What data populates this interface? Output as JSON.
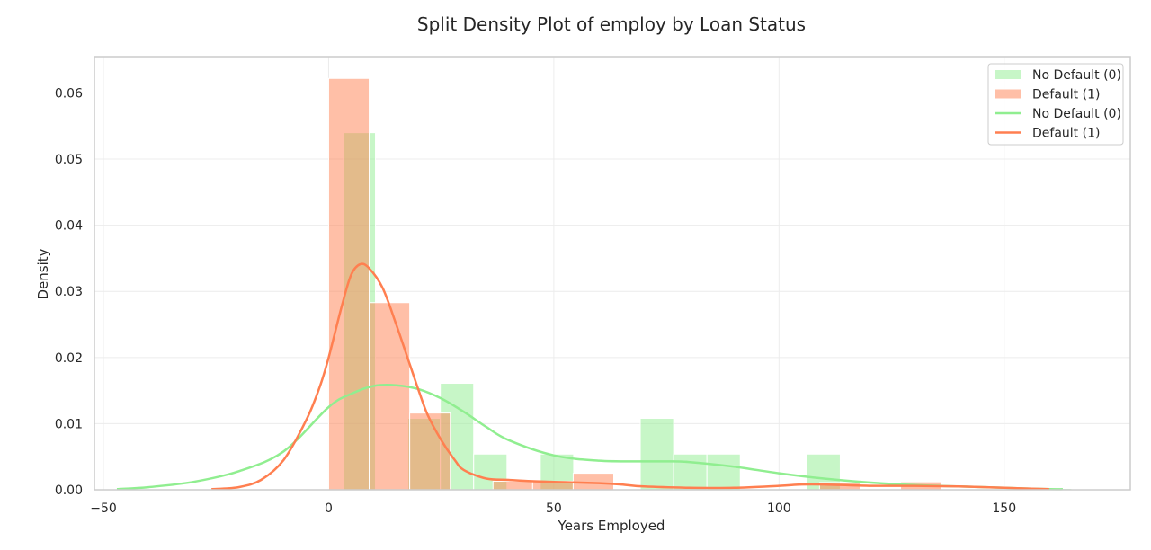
{
  "chart_data": {
    "type": "histogram+kde",
    "title": "Split Density Plot of employ by Loan Status",
    "xlabel": "Years Employed",
    "ylabel": "Density",
    "xlim": [
      -52,
      178
    ],
    "ylim": [
      0,
      0.0655
    ],
    "x_ticks": [
      -50,
      0,
      50,
      100,
      150
    ],
    "x_tick_labels": [
      "−50",
      "0",
      "50",
      "100",
      "150"
    ],
    "y_ticks": [
      0,
      0.01,
      0.02,
      0.03,
      0.04,
      0.05,
      0.06
    ],
    "y_tick_labels": [
      "0.00",
      "0.01",
      "0.02",
      "0.03",
      "0.04",
      "0.05",
      "0.06"
    ],
    "grid": true,
    "legend_position": "top-right",
    "legend": [
      {
        "label": "No Default (0)",
        "kind": "patch",
        "series": "no_default"
      },
      {
        "label": "Default (1)",
        "kind": "patch",
        "series": "default"
      },
      {
        "label": "No Default (0)",
        "kind": "line",
        "series": "no_default"
      },
      {
        "label": "Default (1)",
        "kind": "line",
        "series": "default"
      }
    ],
    "series": [
      {
        "key": "no_default",
        "name": "No Default (0)",
        "color": "#90ee90",
        "hist": {
          "bins": [
            [
              3.3,
              10.4,
              0.054
            ],
            [
              10.4,
              17.6,
              0.0
            ],
            [
              17.6,
              24.8,
              0.0108
            ],
            [
              24.8,
              32.2,
              0.0161
            ],
            [
              32.2,
              39.6,
              0.0054
            ],
            [
              39.6,
              47.0,
              0.0
            ],
            [
              47.0,
              54.4,
              0.0054
            ],
            [
              54.4,
              61.8,
              0.0
            ],
            [
              61.8,
              69.2,
              0.0
            ],
            [
              69.2,
              76.6,
              0.0108
            ],
            [
              76.6,
              84.0,
              0.0054
            ],
            [
              84.0,
              91.4,
              0.0054
            ],
            [
              91.4,
              98.8,
              0.0
            ],
            [
              98.8,
              106.2,
              0.0
            ],
            [
              106.2,
              113.6,
              0.0054
            ],
            [
              113.6,
              121.0,
              0.0
            ],
            [
              121.0,
              128.4,
              0.0
            ],
            [
              128.4,
              135.8,
              0.0
            ],
            [
              135.8,
              143.2,
              0.0
            ],
            [
              143.2,
              150.6,
              0.0
            ],
            [
              150.6,
              158.0,
              0.0
            ],
            [
              158.0,
              165.0,
              0.0002
            ]
          ]
        },
        "kde": {
          "x": [
            -47,
            -40,
            -30,
            -20,
            -10,
            0,
            5,
            10,
            15,
            20,
            25,
            30,
            35,
            40,
            50,
            60,
            70,
            75,
            80,
            90,
            100,
            110,
            120,
            130,
            140,
            150,
            160,
            163
          ],
          "y": [
            0.0001,
            0.0004,
            0.0012,
            0.0028,
            0.0058,
            0.0125,
            0.0145,
            0.0157,
            0.0158,
            0.0152,
            0.0138,
            0.0118,
            0.0095,
            0.0075,
            0.0052,
            0.0044,
            0.0043,
            0.0043,
            0.0042,
            0.0035,
            0.0025,
            0.0017,
            0.0011,
            0.0007,
            0.0005,
            0.0003,
            0.0001,
            0.0001
          ]
        }
      },
      {
        "key": "default",
        "name": "Default (1)",
        "color": "#ff7f50",
        "hist": {
          "bins": [
            [
              0.0,
              9.0,
              0.0622
            ],
            [
              9.0,
              18.0,
              0.0283
            ],
            [
              18.0,
              27.0,
              0.0116
            ],
            [
              27.0,
              36.5,
              0.0
            ],
            [
              36.5,
              45.3,
              0.0013
            ],
            [
              45.3,
              54.3,
              0.0013
            ],
            [
              54.3,
              63.3,
              0.0025
            ],
            [
              63.3,
              72.3,
              0.0
            ],
            [
              72.3,
              81.3,
              0.0
            ],
            [
              81.3,
              90.3,
              0.0
            ],
            [
              90.3,
              99.3,
              0.0
            ],
            [
              99.3,
              109.0,
              0.0
            ],
            [
              109.0,
              118.0,
              0.0011
            ],
            [
              118.0,
              127.0,
              0.0
            ],
            [
              127.0,
              136.0,
              0.0012
            ],
            [
              136.0,
              145.0,
              0.0
            ],
            [
              145.0,
              154.0,
              0.0
            ],
            [
              154.0,
              162.0,
              0.0002
            ]
          ]
        },
        "kde": {
          "x": [
            -26,
            -20,
            -15,
            -10,
            -5,
            -2,
            0,
            3,
            5,
            7,
            9,
            12,
            15,
            18,
            20,
            22,
            25,
            28,
            30,
            35,
            40,
            45,
            50,
            55,
            60,
            65,
            70,
            80,
            90,
            100,
            105,
            110,
            120,
            130,
            140,
            150,
            160
          ],
          "y": [
            0.0001,
            0.0004,
            0.0015,
            0.0045,
            0.0105,
            0.0155,
            0.02,
            0.028,
            0.0325,
            0.0341,
            0.0335,
            0.0305,
            0.025,
            0.019,
            0.015,
            0.0113,
            0.0075,
            0.0045,
            0.003,
            0.0017,
            0.0015,
            0.0013,
            0.0012,
            0.0011,
            0.001,
            0.0008,
            0.0005,
            0.0003,
            0.0003,
            0.0006,
            0.0008,
            0.0008,
            0.0006,
            0.0006,
            0.0005,
            0.0003,
            0.0001
          ]
        }
      }
    ]
  }
}
